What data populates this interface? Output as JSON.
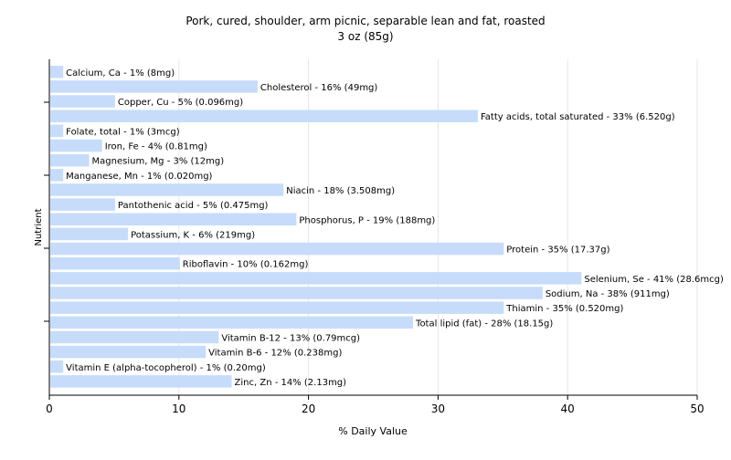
{
  "chart_data": {
    "type": "bar",
    "orientation": "horizontal",
    "title": "Pork, cured, shoulder, arm picnic, separable lean and fat, roasted",
    "subtitle": "3 oz (85g)",
    "xlabel": "% Daily Value",
    "ylabel": "Nutrient",
    "xlim": [
      0,
      50
    ],
    "xticks": [
      0,
      10,
      20,
      30,
      40,
      50
    ],
    "grid": true,
    "colors": {
      "bar": "#c6dcfa",
      "grid": "#e6e6e6",
      "axis": "#000000",
      "text": "#000000"
    },
    "categories": [
      "Calcium, Ca",
      "Cholesterol",
      "Copper, Cu",
      "Fatty acids, total saturated",
      "Folate, total",
      "Iron, Fe",
      "Magnesium, Mg",
      "Manganese, Mn",
      "Niacin",
      "Pantothenic acid",
      "Phosphorus, P",
      "Potassium, K",
      "Protein",
      "Riboflavin",
      "Selenium, Se",
      "Sodium, Na",
      "Thiamin",
      "Total lipid (fat)",
      "Vitamin B-12",
      "Vitamin B-6",
      "Vitamin E (alpha-tocopherol)",
      "Zinc, Zn"
    ],
    "values": [
      1,
      16,
      5,
      33,
      1,
      4,
      3,
      1,
      18,
      5,
      19,
      6,
      35,
      10,
      41,
      38,
      35,
      28,
      13,
      12,
      1,
      14
    ],
    "bar_labels": [
      "Calcium, Ca - 1% (8mg)",
      "Cholesterol - 16% (49mg)",
      "Copper, Cu - 5% (0.096mg)",
      "Fatty acids, total saturated - 33% (6.520g)",
      "Folate, total - 1% (3mcg)",
      "Iron, Fe - 4% (0.81mg)",
      "Magnesium, Mg - 3% (12mg)",
      "Manganese, Mn - 1% (0.020mg)",
      "Niacin - 18% (3.508mg)",
      "Pantothenic acid - 5% (0.475mg)",
      "Phosphorus, P - 19% (188mg)",
      "Potassium, K - 6% (219mg)",
      "Protein - 35% (17.37g)",
      "Riboflavin - 10% (0.162mg)",
      "Selenium, Se - 41% (28.6mcg)",
      "Sodium, Na - 38% (911mg)",
      "Thiamin - 35% (0.520mg)",
      "Total lipid (fat) - 28% (18.15g)",
      "Vitamin B-12 - 13% (0.79mcg)",
      "Vitamin B-6 - 12% (0.238mg)",
      "Vitamin E (alpha-tocopherol) - 1% (0.20mg)",
      "Zinc, Zn - 14% (2.13mg)"
    ]
  }
}
